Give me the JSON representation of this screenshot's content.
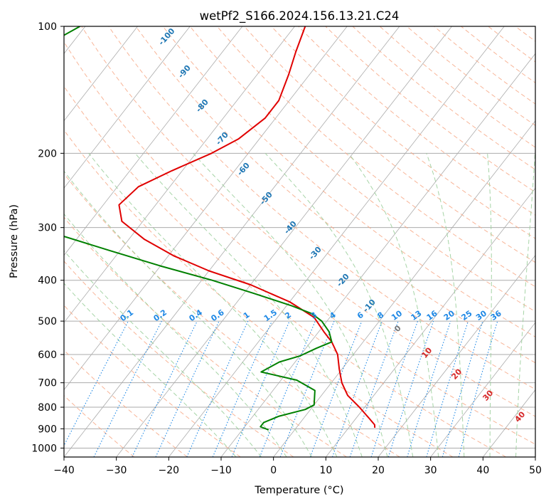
{
  "chart_data": {
    "type": "line",
    "title": "wetPf2_S166.2024.156.13.21.C24",
    "xlabel": "Temperature (°C)",
    "ylabel": "Pressure (hPa)",
    "xlim": [
      -40,
      50
    ],
    "ylim": [
      1050,
      100
    ],
    "y_scale": "log",
    "grid": true,
    "x_ticks": [
      -40,
      -30,
      -20,
      -10,
      0,
      10,
      20,
      30,
      40,
      50
    ],
    "x_tick_labels": [
      "−40",
      "−30",
      "−20",
      "−10",
      "0",
      "10",
      "20",
      "30",
      "40",
      "50"
    ],
    "y_ticks": [
      100,
      200,
      300,
      400,
      500,
      600,
      700,
      800,
      900,
      1000
    ],
    "y_tick_labels": [
      "100",
      "200",
      "300",
      "400",
      "500",
      "600",
      "700",
      "800",
      "900",
      "1000"
    ],
    "series": [
      {
        "color": "#e00000",
        "points": [
          [
            -58,
            100
          ],
          [
            -56,
            115
          ],
          [
            -54,
            130
          ],
          [
            -52,
            150
          ],
          [
            -52,
            165
          ],
          [
            -54,
            185
          ],
          [
            -57,
            200
          ],
          [
            -62,
            220
          ],
          [
            -66,
            240
          ],
          [
            -67,
            265
          ],
          [
            -64,
            290
          ],
          [
            -57,
            320
          ],
          [
            -49,
            350
          ],
          [
            -40,
            380
          ],
          [
            -30,
            410
          ],
          [
            -20,
            450
          ],
          [
            -13,
            490
          ],
          [
            -9,
            530
          ],
          [
            -6,
            560
          ],
          [
            -3,
            600
          ],
          [
            -0.5,
            650
          ],
          [
            2,
            700
          ],
          [
            5,
            750
          ],
          [
            9,
            800
          ],
          [
            12.5,
            850
          ],
          [
            14.5,
            880
          ],
          [
            15,
            895
          ]
        ]
      },
      {
        "color": "#008000",
        "points": [
          [
            -101,
            100
          ],
          [
            -106,
            115
          ],
          [
            -108,
            125
          ],
          [
            -106,
            140
          ],
          [
            -101,
            160
          ],
          [
            -100,
            175
          ],
          [
            -102,
            190
          ],
          [
            -107,
            200
          ],
          [
            -114,
            212
          ],
          [
            -114,
            218
          ],
          [
            -108,
            230
          ],
          [
            -100,
            250
          ],
          [
            -88,
            280
          ],
          [
            -75,
            310
          ],
          [
            -62,
            340
          ],
          [
            -50,
            370
          ],
          [
            -38,
            400
          ],
          [
            -28,
            430
          ],
          [
            -19,
            460
          ],
          [
            -14,
            480
          ],
          [
            -11,
            500
          ],
          [
            -8,
            530
          ],
          [
            -6,
            560
          ],
          [
            -8,
            580
          ],
          [
            -10,
            605
          ],
          [
            -13,
            625
          ],
          [
            -15,
            660
          ],
          [
            -7,
            690
          ],
          [
            -2,
            730
          ],
          [
            0,
            790
          ],
          [
            -1,
            810
          ],
          [
            -5,
            840
          ],
          [
            -7,
            870
          ],
          [
            -7,
            890
          ],
          [
            -5,
            905
          ]
        ]
      }
    ],
    "dry_adiabat_labels": [
      "-100",
      "-90",
      "-80",
      "-70",
      "-60",
      "-50",
      "-40",
      "-30",
      "-20",
      "-10",
      "0",
      "10",
      "20",
      "30",
      "40"
    ],
    "mixing_ratio_labels": [
      "0.1",
      "0.2",
      "0.4",
      "0.6",
      "1",
      "1.5",
      "2",
      "3",
      "4",
      "6",
      "8",
      "10",
      "13",
      "16",
      "20",
      "25",
      "30",
      "36"
    ],
    "colors": {
      "temperature": "#e00000",
      "dewpoint": "#008000",
      "isotherm": "#ababab",
      "dry_adiabat": "#f7a886",
      "moist_adiabat": "#9ccf9c",
      "mixing_ratio": "#1e88e5",
      "cold_label": "#1f77b4",
      "warm_label": "#d62728",
      "zero_label": "#777777"
    }
  }
}
